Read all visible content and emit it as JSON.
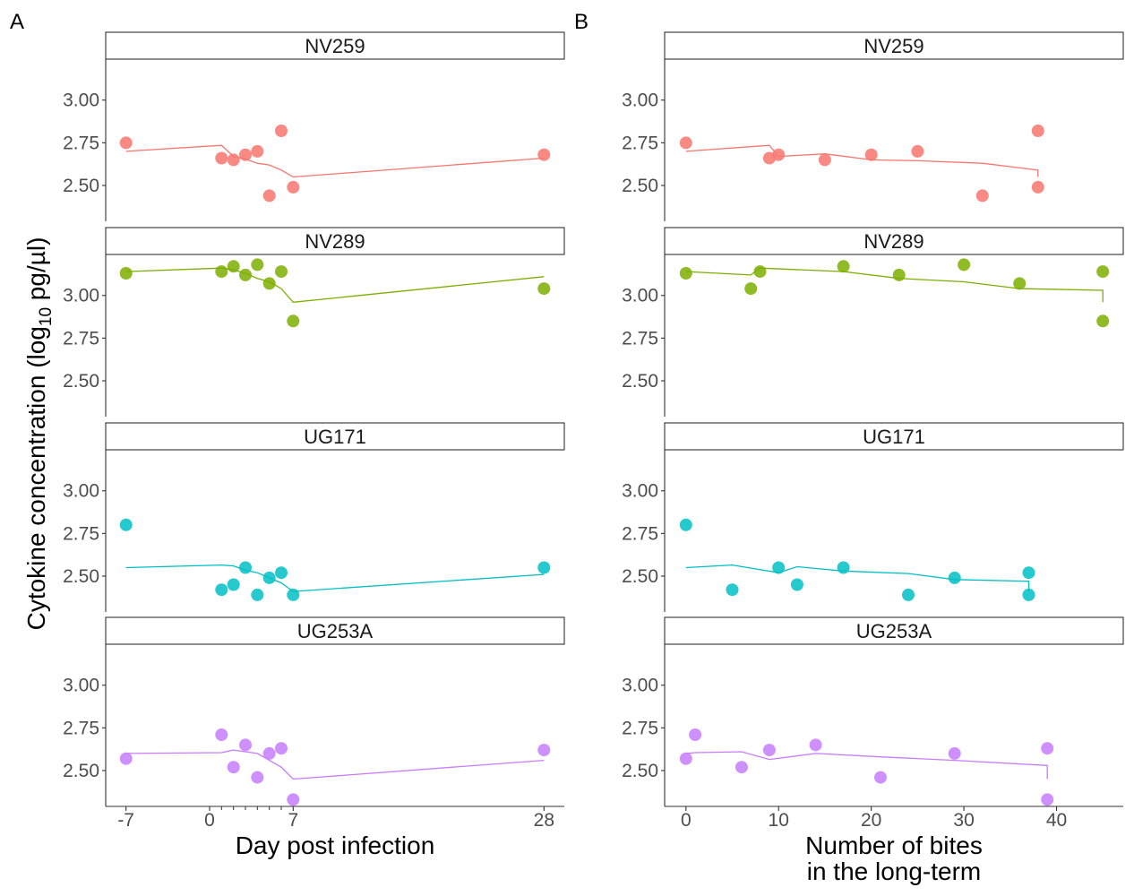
{
  "panel_tags": [
    "A",
    "B"
  ],
  "y_axis": {
    "label_main": "Cytokine concentration (log",
    "label_sub": "10",
    "label_tail": " pg/µl)"
  },
  "chart_data": [
    {
      "type": "scatter",
      "panel": "A",
      "xlabel_lines": [
        "Day post infection"
      ],
      "x_ticks": [
        -7,
        0,
        7,
        28
      ],
      "x_minor_ticks": [
        1,
        2,
        3,
        4,
        5,
        6
      ],
      "xlim": [
        -8.7,
        29.7
      ],
      "ylim": [
        2.29,
        3.24
      ],
      "y_ticks": [
        2.5,
        2.75,
        3.0
      ],
      "y_tick_labels": [
        "2.50",
        "2.75",
        "3.00"
      ],
      "grid": false,
      "facets": [
        {
          "name": "NV259",
          "color": "#F8766D",
          "points": [
            [
              -7,
              2.75
            ],
            [
              1,
              2.66
            ],
            [
              2,
              2.65
            ],
            [
              3,
              2.68
            ],
            [
              4,
              2.7
            ],
            [
              5,
              2.44
            ],
            [
              6,
              2.82
            ],
            [
              7,
              2.49
            ],
            [
              28,
              2.68
            ]
          ],
          "fit": [
            [
              -7,
              2.7
            ],
            [
              1,
              2.735
            ],
            [
              2,
              2.67
            ],
            [
              3,
              2.655
            ],
            [
              4,
              2.63
            ],
            [
              5,
              2.62
            ],
            [
              6,
              2.59
            ],
            [
              7,
              2.55
            ],
            [
              28,
              2.66
            ]
          ]
        },
        {
          "name": "NV289",
          "color": "#7CAE00",
          "points": [
            [
              -7,
              3.13
            ],
            [
              1,
              3.14
            ],
            [
              2,
              3.17
            ],
            [
              3,
              3.12
            ],
            [
              4,
              3.18
            ],
            [
              5,
              3.07
            ],
            [
              6,
              3.14
            ],
            [
              7,
              2.85
            ],
            [
              28,
              3.04
            ]
          ],
          "fit": [
            [
              -7,
              3.14
            ],
            [
              1,
              3.16
            ],
            [
              2,
              3.15
            ],
            [
              3,
              3.13
            ],
            [
              4,
              3.1
            ],
            [
              5,
              3.08
            ],
            [
              6,
              3.04
            ],
            [
              7,
              2.96
            ],
            [
              28,
              3.11
            ]
          ]
        },
        {
          "name": "UG171",
          "color": "#00BFC4",
          "points": [
            [
              -7,
              2.8
            ],
            [
              1,
              2.42
            ],
            [
              2,
              2.45
            ],
            [
              3,
              2.55
            ],
            [
              4,
              2.39
            ],
            [
              5,
              2.49
            ],
            [
              6,
              2.52
            ],
            [
              7,
              2.39
            ],
            [
              28,
              2.55
            ]
          ],
          "fit": [
            [
              -7,
              2.55
            ],
            [
              1,
              2.565
            ],
            [
              2,
              2.56
            ],
            [
              3,
              2.535
            ],
            [
              4,
              2.52
            ],
            [
              5,
              2.49
            ],
            [
              6,
              2.46
            ],
            [
              7,
              2.41
            ],
            [
              28,
              2.51
            ]
          ]
        },
        {
          "name": "UG253A",
          "color": "#C77CFF",
          "points": [
            [
              -7,
              2.57
            ],
            [
              1,
              2.71
            ],
            [
              2,
              2.52
            ],
            [
              3,
              2.65
            ],
            [
              4,
              2.46
            ],
            [
              5,
              2.6
            ],
            [
              6,
              2.63
            ],
            [
              7,
              2.33
            ],
            [
              28,
              2.62
            ]
          ],
          "fit": [
            [
              -7,
              2.6
            ],
            [
              1,
              2.605
            ],
            [
              2,
              2.62
            ],
            [
              3,
              2.61
            ],
            [
              4,
              2.6
            ],
            [
              5,
              2.56
            ],
            [
              6,
              2.52
            ],
            [
              7,
              2.45
            ],
            [
              28,
              2.56
            ]
          ]
        }
      ]
    },
    {
      "type": "scatter",
      "panel": "B",
      "xlabel_lines": [
        "Number of bites",
        "in the long-term"
      ],
      "x_ticks": [
        0,
        10,
        20,
        30,
        40
      ],
      "xlim": [
        -2.3,
        47.2
      ],
      "ylim": [
        2.29,
        3.24
      ],
      "y_ticks": [
        2.5,
        2.75,
        3.0
      ],
      "y_tick_labels": [
        "2.50",
        "2.75",
        "3.00"
      ],
      "grid": false,
      "facets": [
        {
          "name": "NV259",
          "color": "#F8766D",
          "points": [
            [
              0,
              2.75
            ],
            [
              9,
              2.66
            ],
            [
              10,
              2.68
            ],
            [
              15,
              2.65
            ],
            [
              20,
              2.68
            ],
            [
              25,
              2.7
            ],
            [
              32,
              2.44
            ],
            [
              38,
              2.82
            ],
            [
              38,
              2.49
            ]
          ],
          "fit": [
            [
              0,
              2.7
            ],
            [
              9,
              2.735
            ],
            [
              10,
              2.67
            ],
            [
              15,
              2.685
            ],
            [
              20,
              2.65
            ],
            [
              25,
              2.645
            ],
            [
              32,
              2.63
            ],
            [
              38,
              2.59
            ],
            [
              38,
              2.55
            ]
          ]
        },
        {
          "name": "NV289",
          "color": "#7CAE00",
          "points": [
            [
              0,
              3.13
            ],
            [
              7,
              3.04
            ],
            [
              8,
              3.14
            ],
            [
              17,
              3.17
            ],
            [
              23,
              3.12
            ],
            [
              30,
              3.18
            ],
            [
              36,
              3.07
            ],
            [
              45,
              3.14
            ],
            [
              45,
              2.85
            ]
          ],
          "fit": [
            [
              0,
              3.14
            ],
            [
              7,
              3.12
            ],
            [
              8,
              3.16
            ],
            [
              17,
              3.14
            ],
            [
              23,
              3.1
            ],
            [
              30,
              3.08
            ],
            [
              36,
              3.04
            ],
            [
              45,
              3.03
            ],
            [
              45,
              2.96
            ]
          ]
        },
        {
          "name": "UG171",
          "color": "#00BFC4",
          "points": [
            [
              0,
              2.8
            ],
            [
              5,
              2.42
            ],
            [
              10,
              2.55
            ],
            [
              12,
              2.45
            ],
            [
              17,
              2.55
            ],
            [
              24,
              2.39
            ],
            [
              29,
              2.49
            ],
            [
              37,
              2.52
            ],
            [
              37,
              2.39
            ]
          ],
          "fit": [
            [
              0,
              2.55
            ],
            [
              5,
              2.565
            ],
            [
              10,
              2.52
            ],
            [
              12,
              2.555
            ],
            [
              17,
              2.53
            ],
            [
              24,
              2.515
            ],
            [
              29,
              2.48
            ],
            [
              37,
              2.47
            ],
            [
              37,
              2.41
            ]
          ]
        },
        {
          "name": "UG253A",
          "color": "#C77CFF",
          "points": [
            [
              0,
              2.57
            ],
            [
              1,
              2.71
            ],
            [
              6,
              2.52
            ],
            [
              9,
              2.62
            ],
            [
              14,
              2.65
            ],
            [
              21,
              2.46
            ],
            [
              29,
              2.6
            ],
            [
              39,
              2.63
            ],
            [
              39,
              2.33
            ]
          ],
          "fit": [
            [
              0,
              2.6
            ],
            [
              1,
              2.605
            ],
            [
              6,
              2.61
            ],
            [
              9,
              2.565
            ],
            [
              14,
              2.6
            ],
            [
              21,
              2.58
            ],
            [
              29,
              2.56
            ],
            [
              39,
              2.53
            ],
            [
              39,
              2.45
            ]
          ]
        }
      ]
    }
  ]
}
